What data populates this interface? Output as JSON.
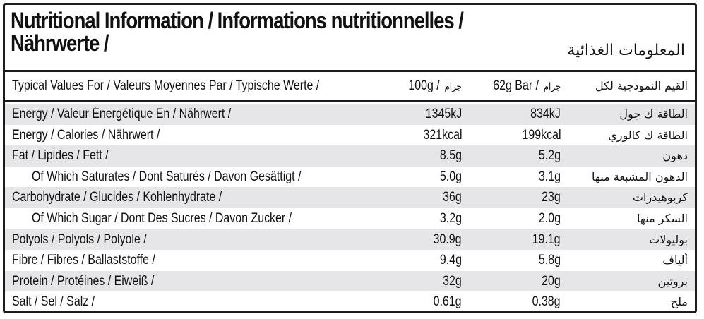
{
  "title": {
    "line1": "Nutritional Information / Informations nutritionnelles /",
    "line2": "Nährwerte /",
    "arabic": "المعلومات الغذائية"
  },
  "header": {
    "label": "Typical Values For / Valeurs Moyennes Par / Typische Werte /",
    "per100": "100g /",
    "per100_ar": "جرام",
    "perBar": "62g Bar /",
    "perBar_ar": "جرام",
    "arabic": "القيم النموذجية لكل"
  },
  "rows": [
    {
      "label": "Energy / Valeur Énergétique En / Nährwert /",
      "v100": "1345kJ",
      "vbar": "834kJ",
      "ar": "الطاقة ك جول",
      "shade": true,
      "sub": false
    },
    {
      "label": "Energy / Calories / Nährwert /",
      "v100": "321kcal",
      "vbar": "199kcal",
      "ar": "الطاقة ك كالوري",
      "shade": false,
      "sub": false
    },
    {
      "label": "Fat / Lipides / Fett /",
      "v100": "8.5g",
      "vbar": "5.2g",
      "ar": "دهون",
      "shade": true,
      "sub": false
    },
    {
      "label": "Of Which Saturates / Dont Saturés / Davon Gesättigt /",
      "v100": "5.0g",
      "vbar": "3.1g",
      "ar": "الدهون المشبعة منها",
      "shade": false,
      "sub": true
    },
    {
      "label": "Carbohydrate / Glucides / Kohlenhydrate /",
      "v100": "36g",
      "vbar": "23g",
      "ar": "كربوهيدرات",
      "shade": true,
      "sub": false
    },
    {
      "label": "Of Which Sugar / Dont Des Sucres / Davon Zucker /",
      "v100": "3.2g",
      "vbar": "2.0g",
      "ar": "السكر منها",
      "shade": false,
      "sub": true
    },
    {
      "label": "Polyols / Polyols / Polyole /",
      "v100": "30.9g",
      "vbar": "19.1g",
      "ar": "بوليولات",
      "shade": true,
      "sub": false
    },
    {
      "label": "Fibre / Fibres / Ballaststoffe /",
      "v100": "9.4g",
      "vbar": "5.8g",
      "ar": "ألياف",
      "shade": false,
      "sub": false
    },
    {
      "label": "Protein / Protéines / Eiweiß /",
      "v100": "32g",
      "vbar": "20g",
      "ar": "بروتين",
      "shade": true,
      "sub": false
    },
    {
      "label": "Salt / Sel / Salz /",
      "v100": "0.61g",
      "vbar": "0.38g",
      "ar": "ملح",
      "shade": false,
      "sub": false
    }
  ]
}
